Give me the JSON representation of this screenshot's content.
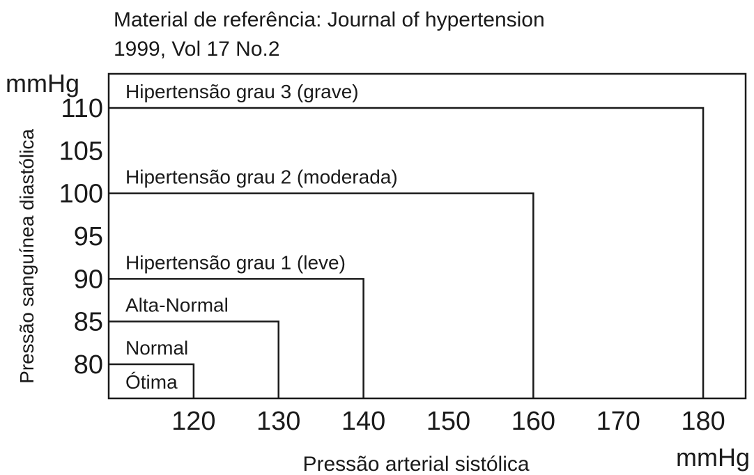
{
  "chart_data": {
    "type": "area",
    "title_lines": [
      "Material de referência: Journal of hypertension",
      "1999, Vol 17 No.2"
    ],
    "xlabel": "Pressão arterial sistólica",
    "ylabel": "Pressão sanguínea diastólica",
    "x_unit": "mmHg",
    "y_unit": "mmHg",
    "x_ticks": [
      120,
      130,
      140,
      150,
      160,
      170,
      180
    ],
    "y_ticks": [
      80,
      85,
      90,
      95,
      100,
      105,
      110
    ],
    "xlim": [
      110,
      185
    ],
    "ylim": [
      76,
      114
    ],
    "categories": [
      {
        "label": "Ótima",
        "systolic_max": 120,
        "diastolic_max": 80
      },
      {
        "label": "Normal",
        "systolic_max": 130,
        "diastolic_max": 85
      },
      {
        "label": "Alta-Normal",
        "systolic_max": 140,
        "diastolic_max": 90
      },
      {
        "label": "Hipertensão grau 1 (leve)",
        "systolic_max": 160,
        "diastolic_max": 100
      },
      {
        "label": "Hipertensão grau 2 (moderada)",
        "systolic_max": 180,
        "diastolic_max": 110
      },
      {
        "label": "Hipertensão grau 3 (grave)",
        "systolic_max": null,
        "diastolic_max": null
      }
    ],
    "grid": false
  }
}
